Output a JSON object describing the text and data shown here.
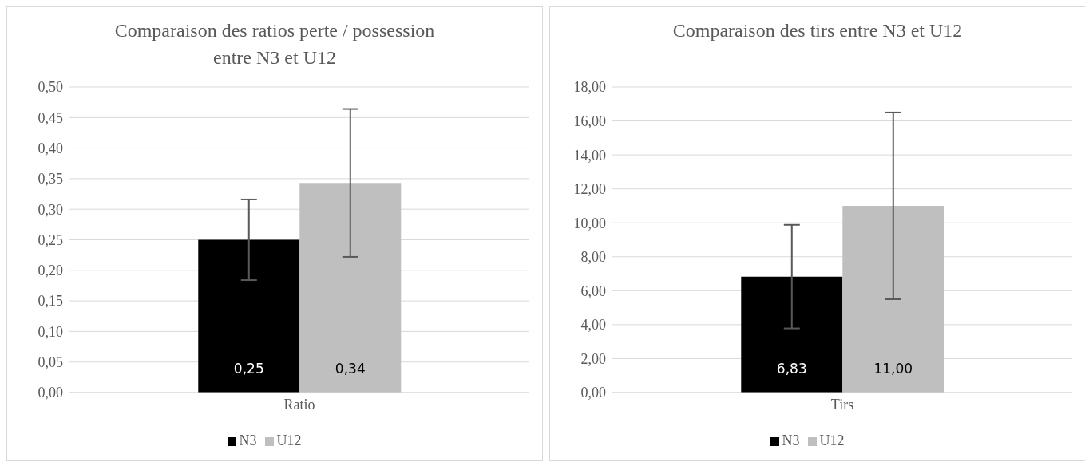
{
  "chart_data": [
    {
      "type": "bar",
      "title": "Comparaison des ratios perte / possession entre N3 et U12",
      "categories": [
        "Ratio"
      ],
      "series": [
        {
          "name": "N3",
          "color": "#000000",
          "values": [
            0.25
          ],
          "errors": [
            0.066
          ],
          "value_labels": [
            "0,25"
          ]
        },
        {
          "name": "U12",
          "color": "#bfbfbf",
          "values": [
            0.343
          ],
          "errors": [
            0.121
          ],
          "value_labels": [
            "0,34"
          ]
        }
      ],
      "ylim": [
        0,
        0.5
      ],
      "yticks": [
        {
          "value": 0,
          "label": "0,00"
        },
        {
          "value": 0.05,
          "label": "0,05"
        },
        {
          "value": 0.1,
          "label": "0,10"
        },
        {
          "value": 0.15,
          "label": "0,15"
        },
        {
          "value": 0.2,
          "label": "0,20"
        },
        {
          "value": 0.25,
          "label": "0,25"
        },
        {
          "value": 0.3,
          "label": "0,30"
        },
        {
          "value": 0.35,
          "label": "0,35"
        },
        {
          "value": 0.4,
          "label": "0,40"
        },
        {
          "value": 0.45,
          "label": "0,45"
        },
        {
          "value": 0.5,
          "label": "0,50"
        }
      ],
      "grid": "y",
      "legend": "bottom"
    },
    {
      "type": "bar",
      "title": "Comparaison des tirs entre N3 et U12",
      "categories": [
        "Tirs"
      ],
      "series": [
        {
          "name": "N3",
          "color": "#000000",
          "values": [
            6.83
          ],
          "errors": [
            3.05
          ],
          "value_labels": [
            "6,83"
          ]
        },
        {
          "name": "U12",
          "color": "#bfbfbf",
          "values": [
            11.0
          ],
          "errors": [
            5.5
          ],
          "value_labels": [
            "11,00"
          ]
        }
      ],
      "ylim": [
        0,
        18
      ],
      "yticks": [
        {
          "value": 0,
          "label": "0,00"
        },
        {
          "value": 2,
          "label": "2,00"
        },
        {
          "value": 4,
          "label": "4,00"
        },
        {
          "value": 6,
          "label": "6,00"
        },
        {
          "value": 8,
          "label": "8,00"
        },
        {
          "value": 10,
          "label": "10,00"
        },
        {
          "value": 12,
          "label": "12,00"
        },
        {
          "value": 14,
          "label": "14,00"
        },
        {
          "value": 16,
          "label": "16,00"
        },
        {
          "value": 18,
          "label": "18,00"
        }
      ],
      "grid": "y",
      "legend": "bottom"
    }
  ]
}
